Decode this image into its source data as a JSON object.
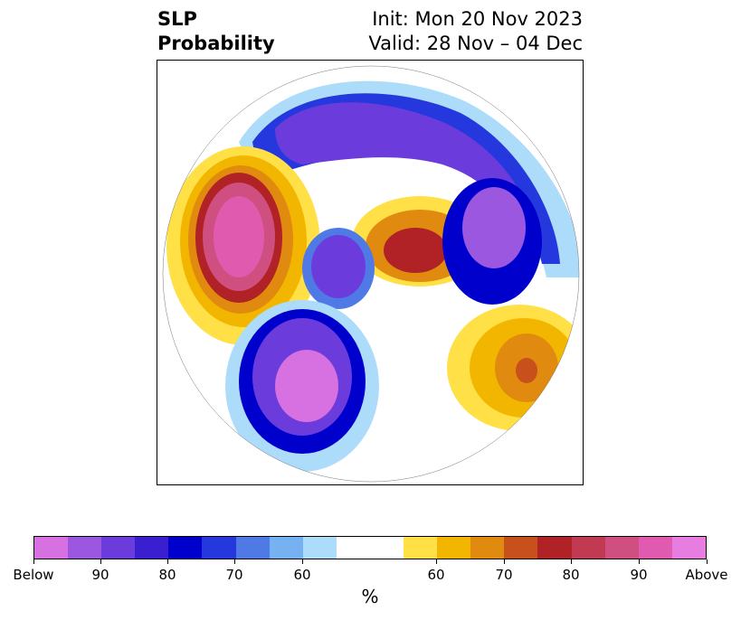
{
  "title": {
    "left_line1": "SLP",
    "left_line2": "Probability",
    "right_line1": "Init: Mon 20 Nov 2023",
    "right_line2": "Valid: 28 Nov – 04 Dec"
  },
  "colorbar": {
    "unit": "%",
    "colors": [
      "#d770e0",
      "#9b57df",
      "#6c3bdc",
      "#3a1fd0",
      "#0000cc",
      "#2538dd",
      "#4f7ae6",
      "#76b1f1",
      "#acdcfa",
      "#ffffff",
      "#ffffff",
      "#ffe046",
      "#f3b600",
      "#e08a0f",
      "#c8501a",
      "#b02225",
      "#c23a52",
      "#cf4f80",
      "#e05ab0",
      "#e77de0"
    ],
    "tick_labels": [
      "Below",
      "90",
      "80",
      "70",
      "60",
      "60",
      "70",
      "80",
      "90",
      "Above"
    ]
  }
}
